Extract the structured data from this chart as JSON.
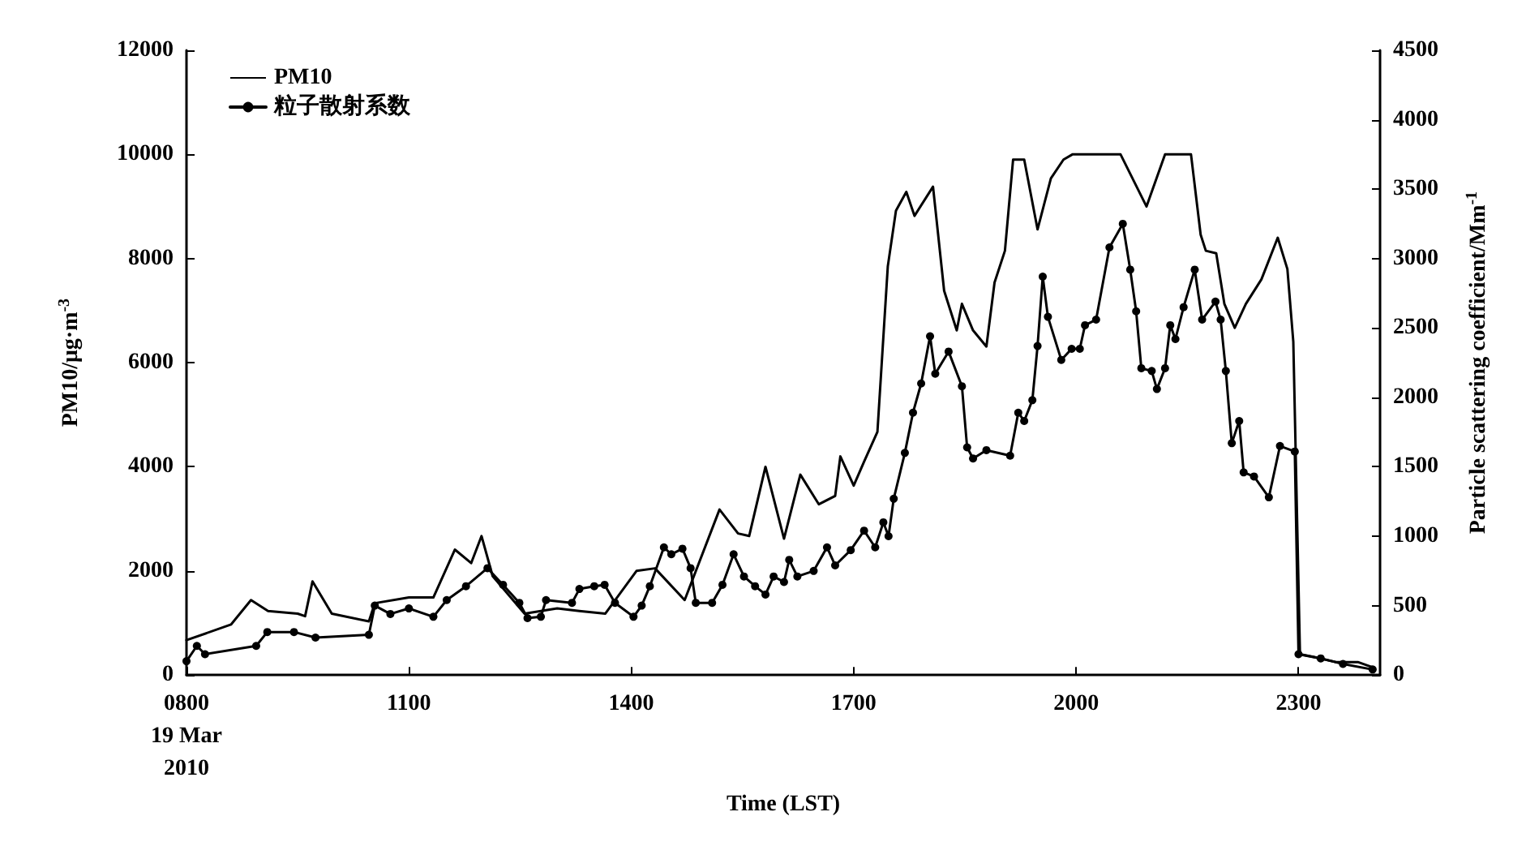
{
  "chart_data": {
    "type": "line",
    "xlabel": "Time (LST)",
    "ylabel": "PM10/μg·m$^{-3}$",
    "y2label": "Particle scattering coefficient/Mm$^{-1}$",
    "xlim": [
      800,
      2410
    ],
    "xticks": [
      {
        "value": 800,
        "label": "0800\n19 Mar\n2010"
      },
      1100,
      1400,
      1700,
      2000,
      2300
    ],
    "ylim": [
      0,
      12000
    ],
    "yticks": [
      0,
      2000,
      4000,
      6000,
      8000,
      10000,
      12000
    ],
    "y2lim": [
      0,
      4500
    ],
    "y2ticks": [
      0,
      500,
      1000,
      1500,
      2000,
      2500,
      3000,
      3500,
      4000,
      4500
    ],
    "legend": "top left",
    "grid": false,
    "line_style": "solid",
    "series": [
      {
        "name": "PM10",
        "color": "#000000",
        "marker": "none",
        "x": [
          800,
          860,
          887,
          910,
          950,
          960,
          970,
          996,
          1046,
          1054,
          1100,
          1133,
          1162,
          1184,
          1198,
          1213,
          1256,
          1300,
          1330,
          1365,
          1407,
          1432,
          1472,
          1519,
          1544,
          1559,
          1581,
          1606,
          1628,
          1653,
          1675,
          1682,
          1700,
          1714,
          1732,
          1746,
          1757,
          1771,
          1782,
          1807,
          1822,
          1839,
          1846,
          1861,
          1879,
          1890,
          1904,
          1915,
          1930,
          1948,
          1966,
          1983,
          1995,
          2060,
          2095,
          2120,
          2155,
          2168,
          2175,
          2189,
          2200,
          2214,
          2229,
          2250,
          2272,
          2285,
          2293,
          2302,
          2320,
          2350,
          2380,
          2400
        ],
        "values": [
          670,
          970,
          1440,
          1230,
          1180,
          1130,
          1800,
          1180,
          1030,
          1380,
          1490,
          1490,
          2410,
          2150,
          2670,
          1900,
          1180,
          1280,
          1230,
          1180,
          2000,
          2050,
          1440,
          3180,
          2720,
          2670,
          4000,
          2620,
          3850,
          3280,
          3440,
          4200,
          3640,
          4100,
          4670,
          7850,
          8920,
          9280,
          8820,
          9380,
          7380,
          6620,
          7130,
          6620,
          6310,
          7540,
          8150,
          9900,
          9900,
          8560,
          9540,
          9900,
          10000,
          10000,
          9000,
          10000,
          10000,
          8460,
          8150,
          8100,
          7130,
          6670,
          7130,
          7600,
          8400,
          7800,
          6400,
          400,
          350,
          250,
          250,
          150
        ]
      },
      {
        "name": "粒子散射系数",
        "color": "#000000",
        "marker": "circle",
        "axis": "y2",
        "x": [
          800,
          814,
          825,
          894,
          909,
          945,
          974,
          1046,
          1054,
          1075,
          1100,
          1133,
          1151,
          1177,
          1206,
          1227,
          1249,
          1260,
          1278,
          1285,
          1320,
          1330,
          1350,
          1364,
          1378,
          1403,
          1414,
          1425,
          1444,
          1454,
          1469,
          1480,
          1487,
          1509,
          1523,
          1538,
          1552,
          1567,
          1581,
          1592,
          1606,
          1613,
          1624,
          1646,
          1664,
          1675,
          1696,
          1714,
          1729,
          1740,
          1747,
          1754,
          1769,
          1780,
          1791,
          1803,
          1810,
          1828,
          1846,
          1853,
          1861,
          1879,
          1911,
          1922,
          1930,
          1941,
          1948,
          1955,
          1962,
          1980,
          1994,
          2005,
          2012,
          2027,
          2045,
          2063,
          2073,
          2081,
          2088,
          2102,
          2109,
          2120,
          2127,
          2134,
          2145,
          2160,
          2170,
          2188,
          2195,
          2202,
          2210,
          2220,
          2226,
          2240,
          2260,
          2275,
          2295,
          2300,
          2330,
          2360,
          2400
        ],
        "values": [
          100,
          210,
          150,
          210,
          310,
          310,
          270,
          290,
          500,
          440,
          480,
          420,
          540,
          640,
          770,
          650,
          520,
          410,
          420,
          540,
          520,
          620,
          640,
          650,
          520,
          420,
          500,
          640,
          920,
          870,
          910,
          770,
          520,
          520,
          650,
          870,
          710,
          640,
          580,
          710,
          670,
          830,
          710,
          750,
          920,
          790,
          900,
          1040,
          920,
          1100,
          1000,
          1270,
          1600,
          1890,
          2100,
          2440,
          2170,
          2330,
          2080,
          1640,
          1560,
          1620,
          1580,
          1890,
          1830,
          1980,
          2370,
          2870,
          2580,
          2270,
          2350,
          2350,
          2520,
          2560,
          3080,
          3250,
          2920,
          2620,
          2210,
          2190,
          2060,
          2210,
          2520,
          2420,
          2650,
          2920,
          2560,
          2690,
          2560,
          2190,
          1670,
          1830,
          1460,
          1430,
          1280,
          1650,
          1610,
          150,
          120,
          80,
          40
        ]
      }
    ]
  }
}
